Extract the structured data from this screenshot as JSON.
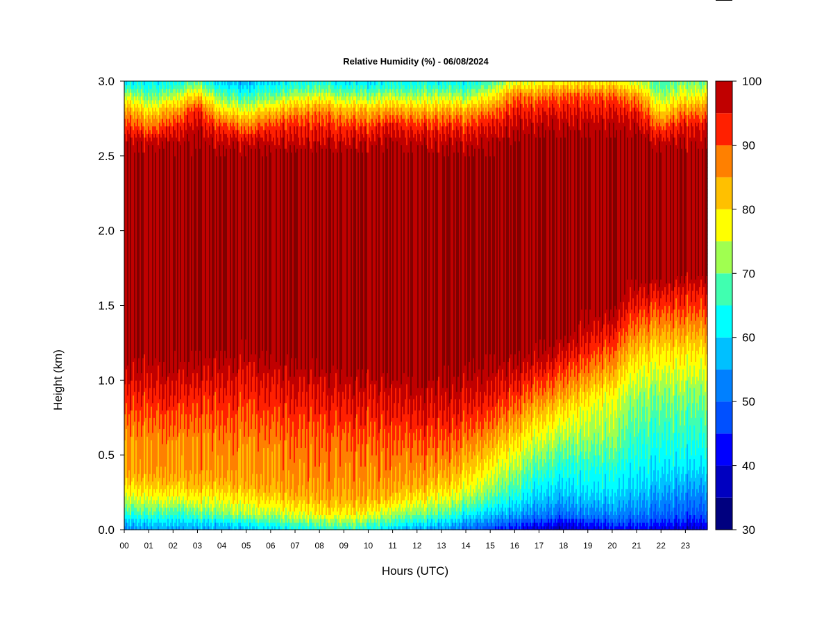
{
  "chart_data": {
    "type": "heatmap",
    "title": "Relative Humidity (%) - 06/08/2024",
    "xlabel": "Hours (UTC)",
    "ylabel": "Height (km)",
    "xlim": [
      0,
      23.9
    ],
    "ylim": [
      0,
      3.0
    ],
    "x_ticks": [
      "00",
      "01",
      "02",
      "03",
      "04",
      "05",
      "06",
      "07",
      "08",
      "09",
      "10",
      "11",
      "12",
      "13",
      "14",
      "15",
      "16",
      "17",
      "18",
      "19",
      "20",
      "21",
      "22",
      "23"
    ],
    "y_ticks": [
      "0.0",
      "0.5",
      "1.0",
      "1.5",
      "2.0",
      "2.5",
      "3.0"
    ],
    "colorbar": {
      "range": [
        30,
        100
      ],
      "levels": [
        30,
        35,
        40,
        45,
        50,
        55,
        60,
        65,
        70,
        75,
        80,
        85,
        90,
        95,
        100
      ],
      "colors": [
        "#00007f",
        "#0000c0",
        "#0000ff",
        "#0050ff",
        "#0080ff",
        "#00c0ff",
        "#00ffff",
        "#40ffb0",
        "#a0ff50",
        "#ffff00",
        "#ffc000",
        "#ff8000",
        "#ff2000",
        "#c00000",
        "#800000"
      ],
      "tick_labels": [
        "30",
        "40",
        "50",
        "60",
        "70",
        "80",
        "90",
        "100"
      ]
    },
    "profile_heights_km": [
      0.0,
      0.05,
      0.1,
      0.2,
      0.3,
      0.4,
      0.5,
      0.6,
      0.7,
      0.8,
      0.9,
      1.0,
      1.1,
      1.2,
      1.3,
      1.4,
      1.5,
      1.6,
      1.7,
      1.8,
      2.0,
      2.2,
      2.4,
      2.5,
      2.6,
      2.7,
      2.8,
      2.9,
      3.0
    ],
    "profile_hours_utc": [
      0,
      1,
      2,
      3,
      4,
      5,
      6,
      7,
      8,
      9,
      10,
      11,
      12,
      13,
      14,
      15,
      16,
      17,
      18,
      19,
      20,
      21,
      22,
      23,
      23.9
    ],
    "rh_percent": [
      [
        52,
        57,
        64,
        74,
        80,
        85,
        85,
        85,
        88,
        91,
        93,
        96,
        98,
        100,
        100,
        100,
        100,
        100,
        100,
        100,
        100,
        100,
        100,
        100,
        98,
        93,
        86,
        75,
        60
      ],
      [
        56,
        60,
        67,
        76,
        82,
        86,
        87,
        87,
        89,
        91,
        94,
        96,
        98,
        100,
        100,
        100,
        100,
        100,
        100,
        100,
        100,
        100,
        100,
        100,
        97,
        88,
        80,
        70,
        62
      ],
      [
        55,
        59,
        66,
        76,
        82,
        86,
        86,
        87,
        90,
        92,
        95,
        97,
        99,
        100,
        100,
        100,
        100,
        100,
        100,
        100,
        100,
        100,
        100,
        100,
        98,
        93,
        85,
        74,
        62
      ],
      [
        56,
        60,
        68,
        77,
        83,
        86,
        86,
        86,
        89,
        91,
        93,
        96,
        98,
        100,
        100,
        100,
        100,
        100,
        100,
        100,
        100,
        100,
        100,
        100,
        100,
        97,
        94,
        82,
        68
      ],
      [
        56,
        60,
        70,
        77,
        83,
        86,
        87,
        88,
        90,
        92,
        94,
        96,
        98,
        100,
        100,
        100,
        100,
        100,
        100,
        100,
        100,
        100,
        100,
        100,
        97,
        92,
        80,
        70,
        58
      ],
      [
        58,
        64,
        73,
        79,
        84,
        86,
        86,
        87,
        89,
        91,
        93,
        95,
        97,
        99,
        100,
        100,
        100,
        100,
        100,
        100,
        100,
        100,
        100,
        100,
        97,
        88,
        78,
        66,
        56
      ],
      [
        60,
        66,
        73,
        80,
        85,
        86,
        86,
        88,
        90,
        92,
        94,
        96,
        98,
        100,
        100,
        100,
        100,
        100,
        100,
        100,
        100,
        100,
        100,
        100,
        97,
        92,
        82,
        70,
        60
      ],
      [
        62,
        69,
        76,
        82,
        86,
        87,
        88,
        89,
        91,
        93,
        95,
        97,
        99,
        100,
        100,
        100,
        100,
        100,
        100,
        100,
        100,
        100,
        100,
        100,
        97,
        93,
        86,
        74,
        62
      ],
      [
        64,
        70,
        78,
        83,
        86,
        87,
        88,
        89,
        91,
        93,
        95,
        97,
        99,
        100,
        100,
        100,
        100,
        100,
        100,
        100,
        100,
        100,
        100,
        100,
        97,
        93,
        88,
        76,
        64
      ],
      [
        65,
        72,
        78,
        84,
        86,
        87,
        88,
        89,
        92,
        94,
        96,
        98,
        100,
        100,
        100,
        100,
        100,
        100,
        100,
        100,
        100,
        100,
        100,
        100,
        97,
        92,
        84,
        72,
        60
      ],
      [
        64,
        70,
        77,
        84,
        86,
        87,
        88,
        90,
        92,
        94,
        96,
        98,
        100,
        100,
        100,
        100,
        100,
        100,
        100,
        100,
        100,
        100,
        100,
        100,
        97,
        92,
        84,
        72,
        60
      ],
      [
        58,
        66,
        72,
        81,
        85,
        87,
        88,
        90,
        92,
        94,
        96,
        98,
        100,
        100,
        100,
        100,
        100,
        100,
        100,
        100,
        100,
        100,
        100,
        100,
        98,
        95,
        86,
        74,
        62
      ],
      [
        55,
        62,
        70,
        78,
        84,
        86,
        88,
        90,
        93,
        95,
        97,
        99,
        100,
        100,
        100,
        100,
        100,
        100,
        100,
        100,
        100,
        100,
        100,
        100,
        97,
        92,
        84,
        72,
        62
      ],
      [
        54,
        60,
        68,
        76,
        82,
        85,
        88,
        90,
        93,
        95,
        97,
        99,
        100,
        100,
        100,
        100,
        100,
        100,
        100,
        100,
        100,
        100,
        100,
        100,
        97,
        93,
        85,
        74,
        62
      ],
      [
        50,
        55,
        62,
        72,
        78,
        82,
        85,
        88,
        91,
        94,
        96,
        98,
        100,
        100,
        100,
        100,
        100,
        100,
        100,
        100,
        100,
        100,
        100,
        100,
        97,
        92,
        84,
        72,
        62
      ],
      [
        46,
        52,
        58,
        67,
        73,
        77,
        81,
        85,
        89,
        92,
        95,
        97,
        99,
        100,
        100,
        100,
        100,
        100,
        100,
        100,
        100,
        100,
        100,
        100,
        98,
        95,
        88,
        78,
        66
      ],
      [
        42,
        48,
        55,
        62,
        68,
        72,
        76,
        80,
        84,
        88,
        92,
        95,
        98,
        100,
        100,
        100,
        100,
        100,
        100,
        100,
        100,
        100,
        100,
        100,
        100,
        97,
        94,
        88,
        75
      ],
      [
        38,
        45,
        52,
        58,
        62,
        67,
        71,
        75,
        79,
        83,
        88,
        92,
        96,
        99,
        100,
        100,
        100,
        100,
        100,
        100,
        100,
        100,
        100,
        100,
        100,
        98,
        94,
        88,
        76
      ],
      [
        36,
        42,
        50,
        56,
        60,
        64,
        68,
        72,
        76,
        80,
        85,
        89,
        93,
        97,
        100,
        100,
        100,
        100,
        100,
        100,
        100,
        100,
        100,
        100,
        100,
        98,
        95,
        90,
        78
      ],
      [
        40,
        45,
        52,
        58,
        62,
        64,
        68,
        72,
        74,
        76,
        80,
        85,
        89,
        93,
        96,
        98,
        100,
        100,
        100,
        100,
        100,
        100,
        100,
        100,
        100,
        98,
        95,
        90,
        78
      ],
      [
        42,
        47,
        53,
        58,
        62,
        64,
        68,
        71,
        73,
        75,
        77,
        82,
        86,
        90,
        94,
        97,
        100,
        100,
        100,
        100,
        100,
        100,
        100,
        100,
        100,
        98,
        95,
        90,
        78
      ],
      [
        42,
        47,
        52,
        56,
        60,
        62,
        64,
        66,
        68,
        70,
        72,
        75,
        78,
        82,
        86,
        90,
        94,
        97,
        100,
        100,
        100,
        100,
        100,
        100,
        100,
        98,
        94,
        86,
        74
      ],
      [
        40,
        45,
        50,
        54,
        58,
        61,
        63,
        65,
        67,
        69,
        71,
        74,
        77,
        80,
        84,
        88,
        92,
        96,
        100,
        100,
        100,
        100,
        100,
        100,
        97,
        90,
        80,
        72,
        66
      ],
      [
        38,
        43,
        48,
        52,
        56,
        60,
        63,
        65,
        67,
        69,
        71,
        74,
        77,
        80,
        84,
        88,
        92,
        95,
        99,
        100,
        100,
        100,
        100,
        100,
        98,
        95,
        88,
        78,
        70
      ],
      [
        38,
        43,
        48,
        52,
        56,
        60,
        63,
        65,
        67,
        69,
        71,
        74,
        77,
        80,
        84,
        88,
        92,
        95,
        99,
        100,
        100,
        100,
        100,
        100,
        98,
        95,
        88,
        78,
        70
      ]
    ]
  }
}
